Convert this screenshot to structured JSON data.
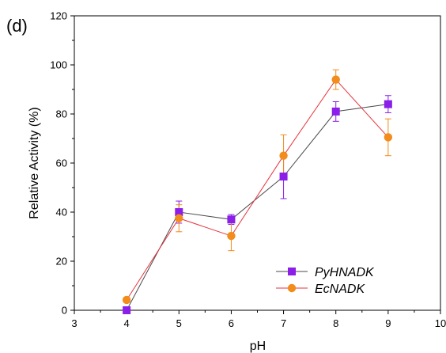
{
  "chart_data": {
    "type": "line",
    "panel_label": "(d)",
    "title": "",
    "xlabel": "pH",
    "ylabel": "Relative Activity (%)",
    "xlim": [
      3,
      10
    ],
    "ylim": [
      0,
      120
    ],
    "xticks": [
      3,
      4,
      5,
      6,
      7,
      8,
      9,
      10
    ],
    "yticks": [
      0,
      20,
      40,
      60,
      80,
      100,
      120
    ],
    "grid": false,
    "legend_position": "bottom-right",
    "x": [
      4,
      5,
      6,
      7,
      8,
      9
    ],
    "series": [
      {
        "name": "PyHNADK",
        "marker": "square",
        "color": "#4a4a4a",
        "marker_color": "#8b1ee8",
        "values": [
          0,
          40,
          37,
          54.5,
          81,
          84
        ],
        "errors": [
          0,
          4.5,
          2,
          9,
          4,
          3.5
        ]
      },
      {
        "name": "EcNADK",
        "marker": "circle",
        "color": "#e8323c",
        "marker_color": "#f28c1c",
        "values": [
          4.2,
          37.5,
          30.3,
          63,
          94,
          70.5
        ],
        "errors": [
          0,
          5.5,
          6,
          8.5,
          4,
          7.5
        ]
      }
    ]
  }
}
